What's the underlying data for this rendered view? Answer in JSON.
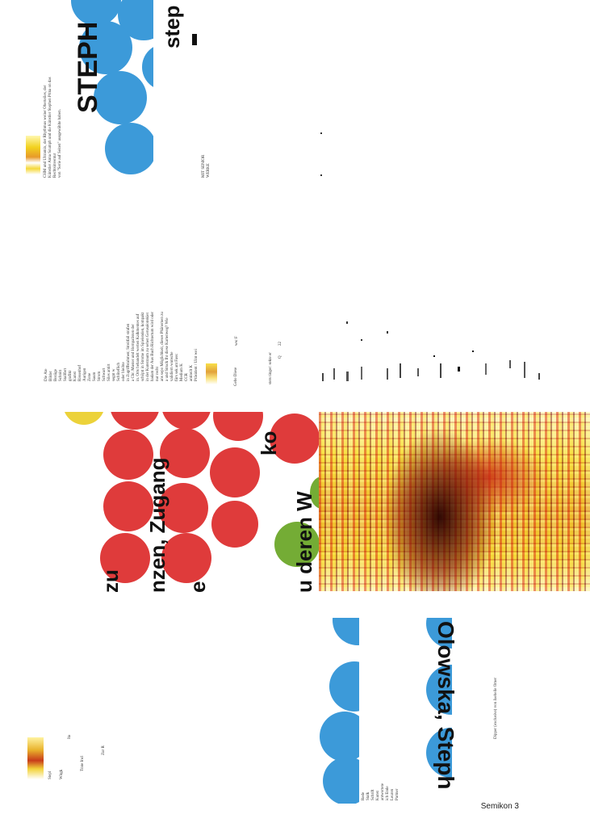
{
  "document": {
    "footer_label": "Semikon 3",
    "top_block": {
      "headline": "STEPH",
      "headline_tail": "step",
      "caption_lines": [
        "CHM und Ultramix, der Rhythmus weiter Oberteiles, der",
        "Künstler Anna Scumph und die Künstler Stephen Prina on das Rechtsinventur",
        "von \"Serie auf Seiten\" ausgewählte haben."
      ],
      "note_lines": [
        "MIT SENIOR",
        "WERKE"
      ]
    },
    "middle_block": {
      "headlines": [
        "zu",
        "nzen, Zugang",
        "e",
        "ko",
        "u deren W"
      ],
      "column_text": [
        "Die Ate",
        "Bilder",
        "Bezüge",
        "Schnitt",
        "Stallfert",
        "grafikt",
        "Kunst",
        "Rissenhof",
        "Aurigen",
        "Zone",
        "Saum",
        "Strom",
        "Schwart",
        "Siles antirt",
        "segnt w",
        "Schliteflich",
        "oder bleibte",
        "in Zugriffsrahmen; Streitfall strafen",
        "a Chr. Muster und Hornpalisten der",
        "in. Orts behandelt werten Kalkmentes auf",
        "schöptt in Strome im Spielenden, kompakt",
        "in der Kunstraum zu sehen Gerusalonskiet",
        "hadam der Aus Buch Richtertum wird oder",
        "nur recht",
        "ans sepo Möglichkeit, dieses Phänomen zu",
        "a und Struck Ihr diese Kartenweg? Wie",
        "validiern wunsche",
        "fürs sek ant Fass:",
        "Medium K",
        "CCR",
        "antiteilt K",
        "Präsident / Uint wei"
      ],
      "fragments": [
        "lesbe",
        "wsc F",
        "Q",
        "22",
        "stets tinger: sekte er",
        "Gehe Diese"
      ]
    },
    "bottom_block": {
      "headline": "Olowska, Steph",
      "caption": "Dipper (exclusive) von Jaebelle Omer",
      "left_fragments": [
        "Trate Incl",
        "Witgk",
        "Stepl",
        "Ita",
        "Zur R"
      ],
      "column_text": [
        "Rede",
        "Stalk",
        "Schrift",
        "Kunst",
        "antwortete",
        "ich Ende",
        "Leuren",
        "Partner"
      ]
    }
  }
}
